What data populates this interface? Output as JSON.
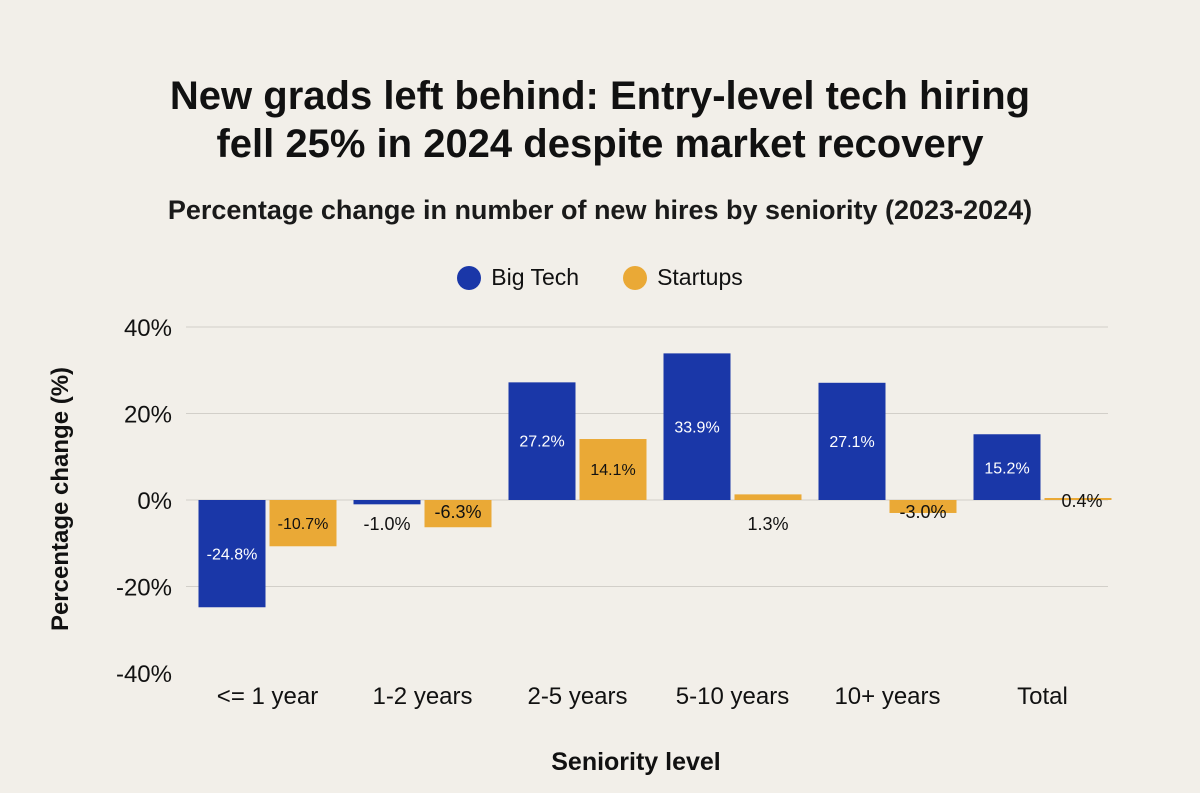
{
  "chart_data": {
    "type": "bar",
    "title": "New grads left behind: Entry-level tech hiring fell 25% in 2024 despite market recovery",
    "title_lines": [
      "New grads left behind: Entry-level tech hiring",
      "fell 25% in 2024 despite market recovery"
    ],
    "subtitle": "Percentage change in number of new hires by seniority (2023-2024)",
    "xlabel": "Seniority level",
    "ylabel": "Percentage change (%)",
    "ylim": [
      -40,
      40
    ],
    "yticks": [
      40,
      20,
      0,
      -20,
      -40
    ],
    "ytick_labels": [
      "40%",
      "20%",
      "0%",
      "-20%",
      "-40%"
    ],
    "grid": true,
    "legend_position": "top-center",
    "categories": [
      "<= 1 year",
      "1-2 years",
      "2-5 years",
      "5-10 years",
      "10+ years",
      "Total"
    ],
    "series": [
      {
        "name": "Big Tech",
        "color": "#1a37a8",
        "values": [
          -24.8,
          -1.0,
          27.2,
          33.9,
          27.1,
          15.2
        ],
        "labels": [
          "-24.8%",
          "-1.0%",
          "27.2%",
          "33.9%",
          "27.1%",
          "15.2%"
        ]
      },
      {
        "name": "Startups",
        "color": "#eaa936",
        "values": [
          -10.7,
          -6.3,
          14.1,
          1.3,
          -3.0,
          0.4
        ],
        "labels": [
          "-10.7%",
          "-6.3%",
          "14.1%",
          "1.3%",
          "-3.0%",
          "0.4%"
        ]
      }
    ]
  }
}
